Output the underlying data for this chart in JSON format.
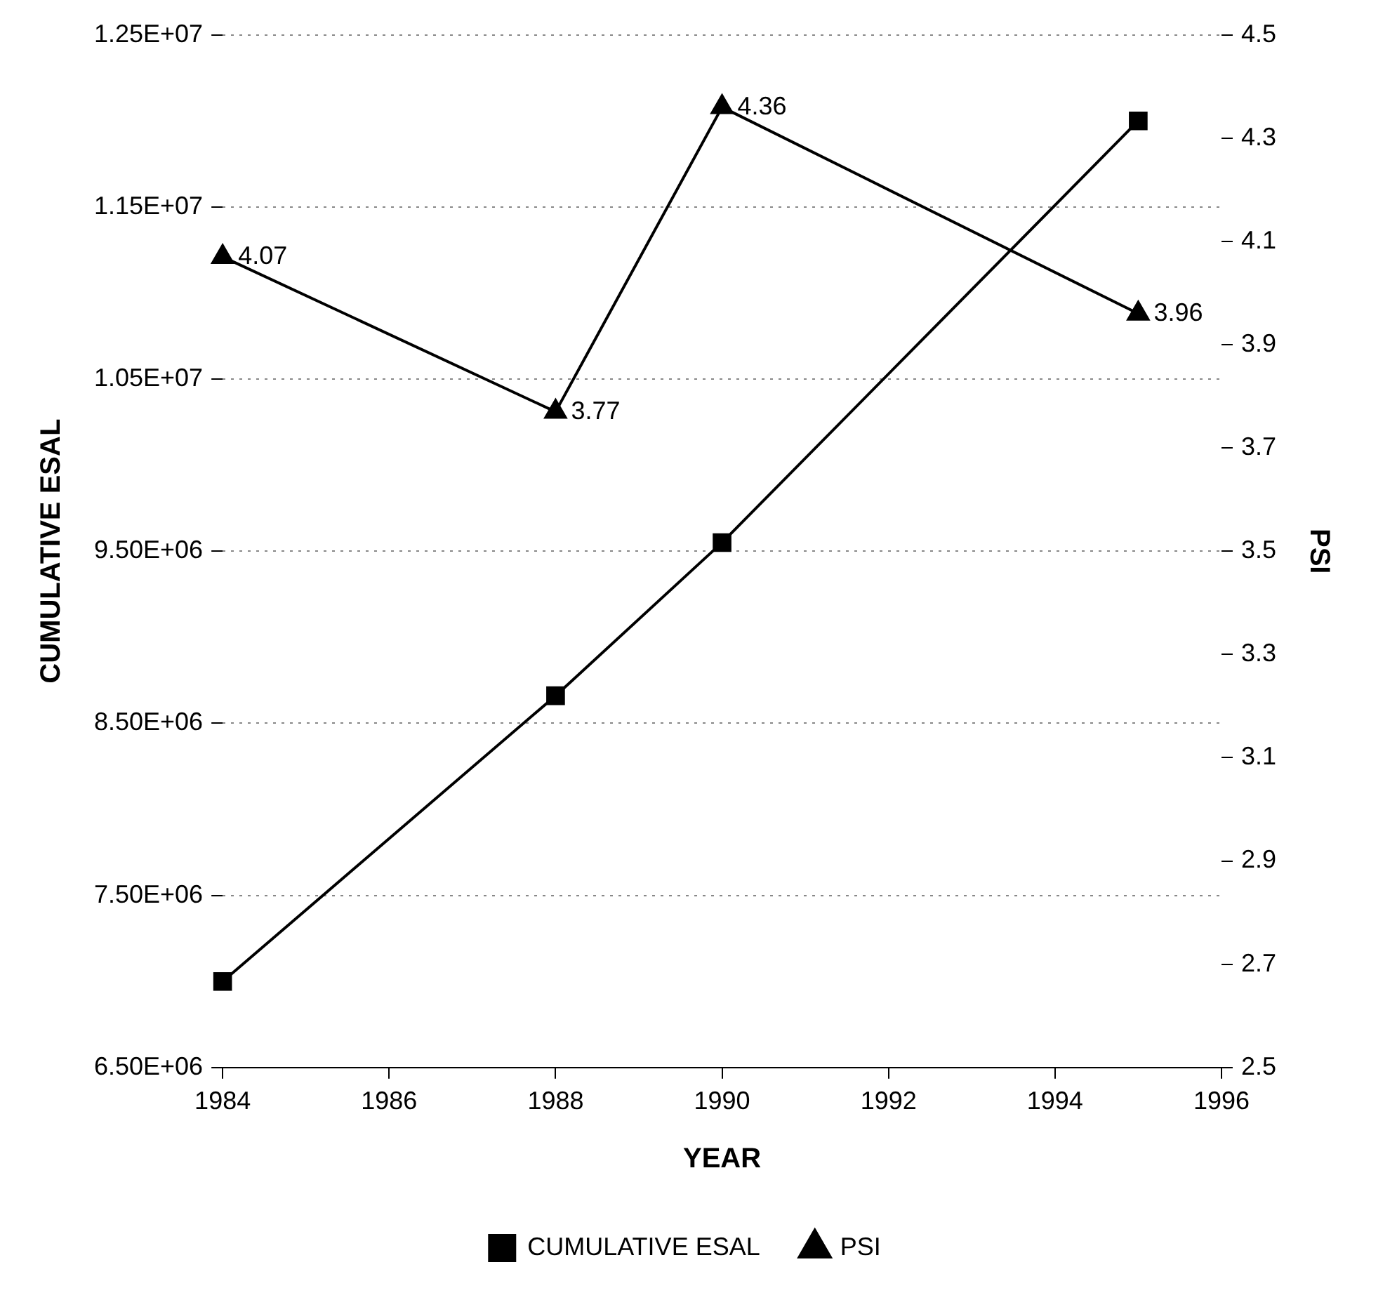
{
  "chart_data": {
    "type": "line",
    "xlabel": "YEAR",
    "ylabel": "CUMULATIVE ESAL",
    "y2label": "PSI",
    "x": [
      1984,
      1988,
      1990,
      1995
    ],
    "series": [
      {
        "name": "CUMULATIVE ESAL",
        "color": "#000000",
        "marker": "square",
        "values": [
          7000000,
          8660000,
          9550000,
          12000000
        ]
      },
      {
        "name": "PSI",
        "color": "#000000",
        "marker": "triangle",
        "axis": "y2",
        "values": [
          4.07,
          3.77,
          4.36,
          3.96
        ],
        "value_labels": [
          "4.07",
          "3.77",
          "4.36",
          "3.96"
        ]
      }
    ],
    "xlim": [
      1984,
      1996
    ],
    "xticks": [
      1984,
      1986,
      1988,
      1990,
      1992,
      1994,
      1996
    ],
    "ylim": [
      6500000,
      12500000
    ],
    "yticks": [
      {
        "value": 6500000,
        "label": "6.50E+06"
      },
      {
        "value": 7500000,
        "label": "7.50E+06"
      },
      {
        "value": 8500000,
        "label": "8.50E+06"
      },
      {
        "value": 9500000,
        "label": "9.50E+06"
      },
      {
        "value": 10500000,
        "label": "1.05E+07"
      },
      {
        "value": 11500000,
        "label": "1.15E+07"
      },
      {
        "value": 12500000,
        "label": "1.25E+07"
      }
    ],
    "y2lim": [
      2.5,
      4.5
    ],
    "y2ticks": [
      2.5,
      2.7,
      2.9,
      3.1,
      3.3,
      3.5,
      3.7,
      3.9,
      4.1,
      4.3,
      4.5
    ],
    "grid": "y",
    "legend": "bottom"
  }
}
